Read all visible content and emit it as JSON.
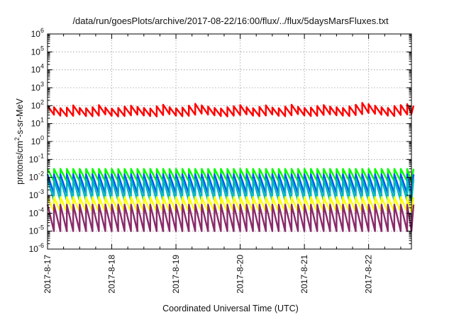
{
  "chart_data": {
    "type": "line",
    "title": "/data/run/goesPlots/archive/2017-08-22/16:00/flux/../flux/5daysMarsFluxes.txt",
    "xlabel": "Coordinated Universal Time (UTC)",
    "ylabel": "protons/cm²-s-sr-MeV",
    "ylabel_base": "protons/cm",
    "ylabel_sup": "2",
    "ylabel_rest": "-s-sr-MeV",
    "yscale": "log",
    "ylim": [
      1e-06,
      1000000.0
    ],
    "xlim": [
      "2017-08-17T00:00",
      "2017-08-22T16:00"
    ],
    "x_ticks": [
      "2017-8-17",
      "2017-8-18",
      "2017-8-19",
      "2017-8-20",
      "2017-8-21",
      "2017-8-22"
    ],
    "y_ticks": [
      {
        "base": "10",
        "exp": "-6"
      },
      {
        "base": "10",
        "exp": "-5"
      },
      {
        "base": "10",
        "exp": "-4"
      },
      {
        "base": "10",
        "exp": "-3"
      },
      {
        "base": "10",
        "exp": "-2"
      },
      {
        "base": "10",
        "exp": "-1"
      },
      {
        "base": "10",
        "exp": "0"
      },
      {
        "base": "10",
        "exp": "1"
      },
      {
        "base": "10",
        "exp": "2"
      },
      {
        "base": "10",
        "exp": "3"
      },
      {
        "base": "10",
        "exp": "4"
      },
      {
        "base": "10",
        "exp": "5"
      },
      {
        "base": "10",
        "exp": "6"
      }
    ],
    "grid": true,
    "legend": "none",
    "series": [
      {
        "color": "#ff0000",
        "peak": 70,
        "trough": 25,
        "period_days": 0.1,
        "envelope": "varying"
      },
      {
        "color": "#00ff00",
        "peak": 0.03,
        "trough": 0.006,
        "period_days": 0.1
      },
      {
        "color": "#0055ff",
        "peak": 0.015,
        "trough": 0.0012,
        "period_days": 0.1
      },
      {
        "color": "#00b8b8",
        "peak": 0.008,
        "trough": 0.0005,
        "period_days": 0.1
      },
      {
        "color": "#ffff00",
        "peak": 0.0008,
        "trough": 0.00012,
        "period_days": 0.1
      },
      {
        "color": "#8a2a6a",
        "peak": 0.0003,
        "trough": 1e-05,
        "period_days": 0.1
      }
    ]
  }
}
